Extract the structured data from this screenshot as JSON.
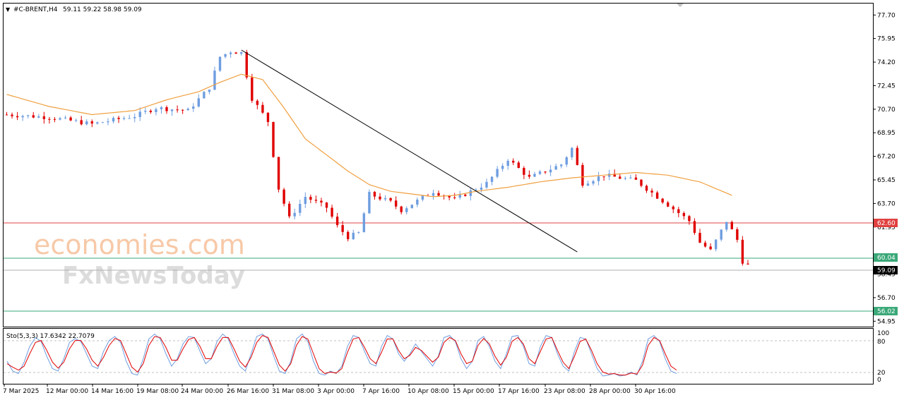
{
  "header": {
    "symbol": "#C-BRENT,H4",
    "ohlc": "59.11 59.22 58.98 59.09"
  },
  "watermark": {
    "line1": "economies.com",
    "line2": "FxNewsToday"
  },
  "indicator": {
    "label": "Sto(5,3,3) 17.6342 22.7079",
    "levels": [
      "100",
      "80",
      "20",
      "0"
    ]
  },
  "price_labels": {
    "resistance": "62.60",
    "support1": "60.04",
    "current": "59.09",
    "support2": "56.02"
  },
  "colors": {
    "bull": "#6f9ee0",
    "bear": "#e00000",
    "ma": "#f0a040",
    "trendline": "#000000",
    "resistance": "#e04040",
    "support": "#3aa878",
    "stoch_k": "#6f9ee0",
    "stoch_d": "#e00000"
  },
  "chart_data": {
    "type": "candlestick",
    "symbol": "#C-BRENT",
    "timeframe": "H4",
    "ylim": [
      54.6,
      78.5
    ],
    "y_ticks": [
      "77.70",
      "75.95",
      "74.20",
      "72.45",
      "70.70",
      "68.95",
      "67.20",
      "65.45",
      "63.70",
      "61.95",
      "58.45",
      "56.70",
      "54.95"
    ],
    "x_ticks": [
      "7 Mar 2025",
      "12 Mar 00:00",
      "14 Mar 16:00",
      "19 Mar 08:00",
      "24 Mar 00:00",
      "26 Mar 16:00",
      "31 Mar 08:00",
      "3 Apr 00:00",
      "7 Apr 16:00",
      "10 Apr 08:00",
      "15 Apr 00:00",
      "17 Apr 16:00",
      "23 Apr 08:00",
      "28 Apr 00:00",
      "30 Apr 16:00"
    ],
    "price_path": [
      [
        0,
        70.3
      ],
      [
        8,
        70.1
      ],
      [
        16,
        69.6
      ],
      [
        24,
        70.2
      ],
      [
        28,
        70.8
      ],
      [
        34,
        70.6
      ],
      [
        38,
        72.3
      ],
      [
        40,
        74.6
      ],
      [
        42,
        75.0
      ],
      [
        44,
        74.9
      ],
      [
        46,
        71.5
      ],
      [
        49,
        69.8
      ],
      [
        51,
        64.8
      ],
      [
        53,
        62.6
      ],
      [
        56,
        64.2
      ],
      [
        60,
        63.4
      ],
      [
        62,
        62.0
      ],
      [
        64,
        61.2
      ],
      [
        66,
        61.5
      ],
      [
        68,
        64.4
      ],
      [
        72,
        63.8
      ],
      [
        74,
        63.2
      ],
      [
        80,
        64.6
      ],
      [
        84,
        64.0
      ],
      [
        90,
        65.2
      ],
      [
        94,
        67.0
      ],
      [
        98,
        65.6
      ],
      [
        104,
        66.6
      ],
      [
        106,
        67.8
      ],
      [
        108,
        65.2
      ],
      [
        112,
        65.8
      ],
      [
        118,
        65.4
      ],
      [
        124,
        63.6
      ],
      [
        128,
        62.4
      ],
      [
        130,
        60.8
      ],
      [
        132,
        60.2
      ],
      [
        135,
        62.4
      ],
      [
        137,
        61.0
      ],
      [
        138,
        59.4
      ],
      [
        139,
        59.1
      ]
    ],
    "ma_path": [
      [
        0,
        71.8
      ],
      [
        8,
        70.9
      ],
      [
        16,
        70.3
      ],
      [
        24,
        70.6
      ],
      [
        30,
        71.4
      ],
      [
        36,
        72.0
      ],
      [
        40,
        72.7
      ],
      [
        44,
        73.3
      ],
      [
        48,
        72.9
      ],
      [
        52,
        70.8
      ],
      [
        56,
        68.5
      ],
      [
        60,
        67.3
      ],
      [
        64,
        66.1
      ],
      [
        68,
        65.1
      ],
      [
        72,
        64.6
      ],
      [
        76,
        64.4
      ],
      [
        80,
        64.2
      ],
      [
        84,
        64.3
      ],
      [
        88,
        64.6
      ],
      [
        94,
        64.9
      ],
      [
        100,
        65.3
      ],
      [
        106,
        65.6
      ],
      [
        112,
        65.8
      ],
      [
        118,
        66.0
      ],
      [
        124,
        65.8
      ],
      [
        130,
        65.3
      ],
      [
        136,
        64.3
      ]
    ],
    "trendline": [
      [
        44,
        75.1
      ],
      [
        107,
        60.1
      ]
    ],
    "levels": {
      "resistance": 62.6,
      "support": [
        60.04,
        56.02
      ],
      "current": 59.09
    },
    "stochastic": {
      "params": "5,3,3",
      "k_last": 17.6342,
      "d_last": 22.7079,
      "k": [
        40,
        20,
        15,
        38,
        70,
        88,
        80,
        50,
        25,
        20,
        45,
        78,
        86,
        80,
        55,
        30,
        25,
        60,
        82,
        90,
        78,
        40,
        15,
        12,
        45,
        85,
        95,
        85,
        55,
        30,
        45,
        75,
        90,
        88,
        60,
        35,
        45,
        80,
        95,
        85,
        55,
        30,
        20,
        55,
        90,
        95,
        85,
        50,
        20,
        15,
        40,
        85,
        95,
        80,
        40,
        15,
        12,
        20,
        15,
        30,
        70,
        92,
        88,
        60,
        35,
        30,
        70,
        92,
        85,
        55,
        40,
        55,
        75,
        60,
        45,
        30,
        50,
        88,
        92,
        80,
        45,
        25,
        40,
        82,
        90,
        70,
        40,
        25,
        55,
        90,
        92,
        70,
        35,
        30,
        70,
        92,
        88,
        55,
        30,
        20,
        60,
        88,
        85,
        55,
        25,
        10,
        12,
        15,
        10,
        12,
        18,
        12,
        40,
        85,
        92,
        80,
        45,
        20,
        15
      ],
      "d": [
        35,
        28,
        22,
        30,
        55,
        78,
        82,
        62,
        38,
        26,
        38,
        65,
        82,
        82,
        65,
        42,
        30,
        48,
        72,
        86,
        82,
        55,
        28,
        18,
        35,
        72,
        90,
        88,
        68,
        42,
        42,
        65,
        84,
        88,
        70,
        45,
        45,
        70,
        88,
        88,
        65,
        40,
        28,
        48,
        78,
        92,
        88,
        60,
        32,
        20,
        35,
        72,
        90,
        85,
        55,
        25,
        15,
        18,
        16,
        25,
        58,
        85,
        88,
        68,
        45,
        35,
        58,
        85,
        85,
        62,
        45,
        52,
        68,
        62,
        50,
        38,
        48,
        78,
        88,
        82,
        55,
        35,
        40,
        72,
        86,
        75,
        50,
        32,
        48,
        80,
        88,
        75,
        45,
        35,
        60,
        85,
        88,
        62,
        38,
        25,
        50,
        80,
        85,
        62,
        35,
        18,
        14,
        15,
        12,
        12,
        16,
        14,
        32,
        72,
        88,
        82,
        55,
        30,
        22
      ]
    }
  }
}
